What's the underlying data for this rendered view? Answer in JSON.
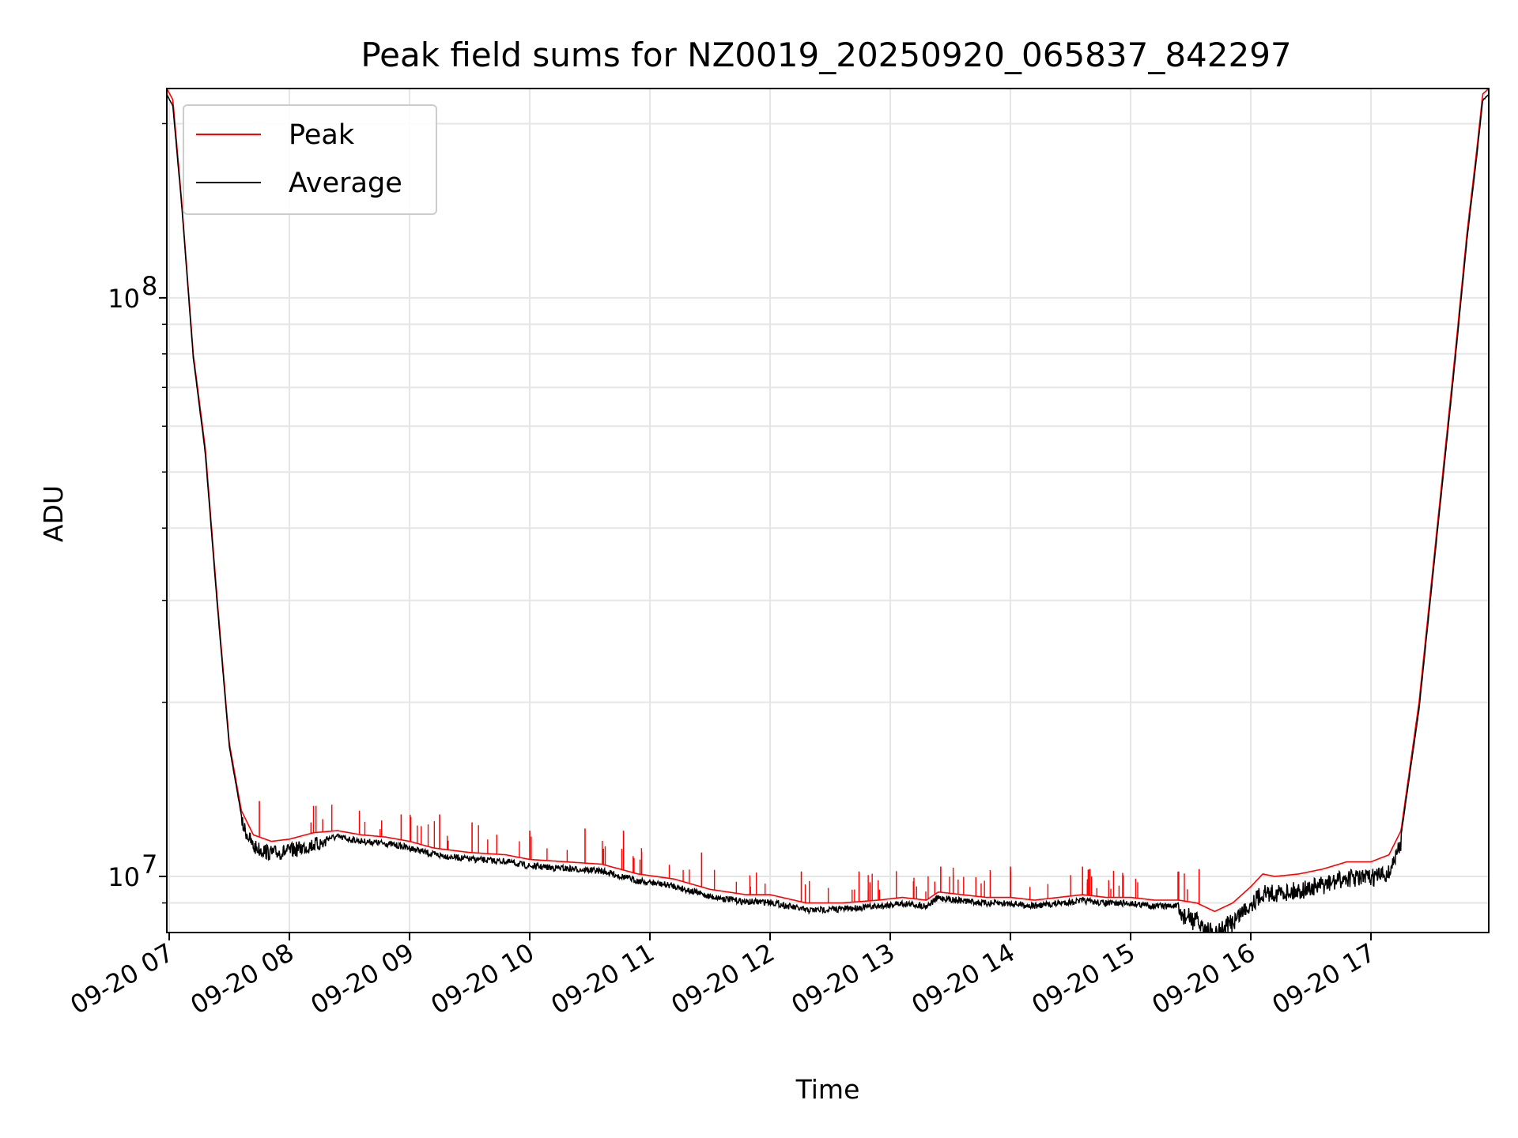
{
  "chart_data": {
    "type": "line",
    "title": "Peak field sums for NZ0019_20250920_065837_842297",
    "xlabel": "Time",
    "ylabel": "ADU",
    "yscale": "log",
    "grid": true,
    "legend_position": "top-left",
    "x_unit": "hours since 2025-09-20 00:00",
    "xlim": [
      6.98,
      17.98
    ],
    "ylim": [
      8000000.0,
      230000000.0
    ],
    "x_ticks": [
      {
        "value": 7,
        "label": "09-20 07"
      },
      {
        "value": 8,
        "label": "09-20 08"
      },
      {
        "value": 9,
        "label": "09-20 09"
      },
      {
        "value": 10,
        "label": "09-20 10"
      },
      {
        "value": 11,
        "label": "09-20 11"
      },
      {
        "value": 12,
        "label": "09-20 12"
      },
      {
        "value": 13,
        "label": "09-20 13"
      },
      {
        "value": 14,
        "label": "09-20 14"
      },
      {
        "value": 15,
        "label": "09-20 15"
      },
      {
        "value": 16,
        "label": "09-20 16"
      },
      {
        "value": 17,
        "label": "09-20 17"
      }
    ],
    "y_major_ticks": [
      {
        "value": 10000000,
        "base": "10",
        "exp": "7"
      },
      {
        "value": 100000000,
        "base": "10",
        "exp": "8"
      }
    ],
    "y_minor_ticks": [
      9000000,
      20000000,
      30000000,
      40000000,
      50000000,
      60000000,
      70000000,
      80000000,
      90000000,
      200000000
    ],
    "series": [
      {
        "name": "Peak",
        "color": "#ff0000",
        "x": [
          6.98,
          7.03,
          7.1,
          7.2,
          7.3,
          7.4,
          7.5,
          7.6,
          7.7,
          7.85,
          8.0,
          8.2,
          8.4,
          8.6,
          8.8,
          9.0,
          9.2,
          9.5,
          9.8,
          10.0,
          10.3,
          10.6,
          10.9,
          11.2,
          11.5,
          11.8,
          12.0,
          12.3,
          12.6,
          12.9,
          13.1,
          13.3,
          13.4,
          13.6,
          13.8,
          14.0,
          14.2,
          14.4,
          14.6,
          14.8,
          15.0,
          15.2,
          15.4,
          15.55,
          15.7,
          15.85,
          16.0,
          16.1,
          16.2,
          16.4,
          16.6,
          16.8,
          17.0,
          17.15,
          17.25,
          17.4,
          17.55,
          17.7,
          17.8,
          17.88,
          17.93,
          17.98
        ],
        "values": [
          230000000,
          220000000,
          150000000,
          80000000,
          55000000,
          30000000,
          17000000,
          13000000,
          11800000,
          11500000,
          11600000,
          11900000,
          12000000,
          11800000,
          11700000,
          11500000,
          11200000,
          11000000,
          10900000,
          10700000,
          10600000,
          10500000,
          10100000,
          9900000,
          9500000,
          9300000,
          9300000,
          9000000,
          9000000,
          9100000,
          9200000,
          9100000,
          9400000,
          9300000,
          9200000,
          9200000,
          9100000,
          9200000,
          9300000,
          9200000,
          9200000,
          9100000,
          9100000,
          9000000,
          8700000,
          9000000,
          9600000,
          10100000,
          10000000,
          10100000,
          10300000,
          10600000,
          10600000,
          10900000,
          12000000,
          20000000,
          40000000,
          80000000,
          130000000,
          180000000,
          225000000,
          230000000
        ],
        "spikes": [
          [
            7.75,
            13500000
          ],
          [
            8.18,
            12400000
          ],
          [
            8.93,
            12800000
          ],
          [
            9.25,
            12800000
          ],
          [
            9.52,
            12400000
          ],
          [
            10.0,
            12000000
          ],
          [
            10.46,
            12100000
          ],
          [
            10.78,
            12000000
          ],
          [
            11.43,
            11000000
          ],
          [
            12.26,
            10200000
          ],
          [
            12.74,
            10200000
          ],
          [
            13.42,
            10400000
          ],
          [
            14.0,
            10400000
          ],
          [
            14.6,
            10400000
          ],
          [
            15.4,
            10200000
          ],
          [
            15.57,
            10300000
          ]
        ]
      },
      {
        "name": "Average",
        "color": "#000000",
        "x": [
          6.98,
          7.03,
          7.1,
          7.2,
          7.3,
          7.4,
          7.5,
          7.6,
          7.7,
          7.85,
          8.0,
          8.2,
          8.4,
          8.6,
          8.8,
          9.0,
          9.2,
          9.5,
          9.8,
          10.0,
          10.3,
          10.6,
          10.9,
          11.2,
          11.5,
          11.8,
          12.0,
          12.3,
          12.6,
          12.9,
          13.1,
          13.3,
          13.4,
          13.6,
          13.8,
          14.0,
          14.2,
          14.4,
          14.6,
          14.8,
          15.0,
          15.2,
          15.4,
          15.55,
          15.7,
          15.85,
          16.0,
          16.1,
          16.2,
          16.4,
          16.6,
          16.8,
          17.0,
          17.15,
          17.25,
          17.4,
          17.55,
          17.7,
          17.8,
          17.88,
          17.93,
          17.98
        ],
        "values": [
          225000000,
          215000000,
          148000000,
          79000000,
          54000000,
          29500000,
          16800000,
          12800000,
          11600000,
          11300000,
          11400000,
          11700000,
          11850000,
          11650000,
          11550000,
          11350000,
          11050000,
          10850000,
          10750000,
          10550000,
          10450000,
          10350000,
          9950000,
          9750000,
          9350000,
          9150000,
          9150000,
          8850000,
          8900000,
          9000000,
          9100000,
          9000000,
          9300000,
          9200000,
          9100000,
          9100000,
          9000000,
          9100000,
          9200000,
          9100000,
          9100000,
          9000000,
          9000000,
          8700000,
          8200000,
          8700000,
          9300000,
          9700000,
          9700000,
          9800000,
          10000000,
          10300000,
          10300000,
          10500000,
          11800000,
          19500000,
          39000000,
          78000000,
          127000000,
          176000000,
          220000000,
          225000000
        ],
        "noise_band": [
          [
            7.6,
            8.3,
            0.06
          ],
          [
            8.3,
            15.4,
            0.025
          ],
          [
            15.4,
            15.9,
            0.08
          ],
          [
            15.9,
            17.25,
            0.07
          ]
        ]
      }
    ]
  }
}
